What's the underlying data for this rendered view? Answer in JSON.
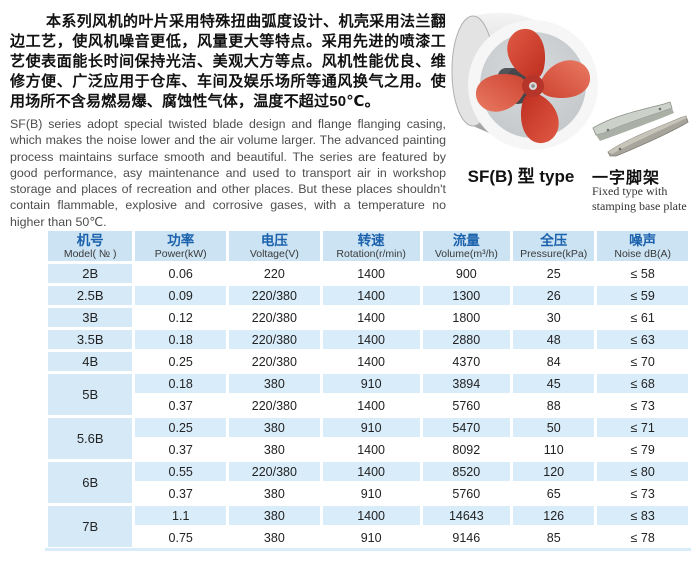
{
  "intro": {
    "cn": "本系列风机的叶片采用特殊扭曲弧度设计、机壳采用法兰翻边工艺，使风机噪音更低，风量更大等特点。采用先进的喷漆工艺使表面能长时间保持光洁、美观大方等点。风机性能优良、维修方便、广泛应用于仓库、车间及娱乐场所等通风换气之用。使用场所不含易燃易爆、腐蚀性气体，温度不超过50℃。",
    "en": "SF(B) series adopt special twisted blade design and flange flanging casing, which makes the noise lower and the air volume larger. The advanced painting process maintains surface smooth and beautiful. The series are featured by good performance, asy maintenance and used to transport air in workshop storage and places of recreation and other places. But these places shouldn't contain flammable, explosive and corrosive gases, with a temperature no higher than 50℃."
  },
  "figures": {
    "fan_caption": "SF(B) 型 type",
    "bracket_caption_cn": "一字脚架",
    "bracket_caption_en": "Fixed type with stamping base plate"
  },
  "colors": {
    "header_bg": "#cbe3f3",
    "stripe_bg": "#d9ecf9",
    "model_col_bg": "#d5e9f7",
    "header_text": "#1b61ac",
    "fan_red": "#c93526",
    "fan_red_light": "#e2604e",
    "casing_silver": "#d9d9d9"
  },
  "table": {
    "headers": [
      {
        "cn": "机号",
        "en": "Model( № )"
      },
      {
        "cn": "功率",
        "en": "Power(kW)"
      },
      {
        "cn": "电压",
        "en": "Voltage(V)"
      },
      {
        "cn": "转速",
        "en": "Rotation(r/min)"
      },
      {
        "cn": "流量",
        "en": "Volume(m³/h)"
      },
      {
        "cn": "全压",
        "en": "Pressure(kPa)"
      },
      {
        "cn": "噪声",
        "en": "Noise dB(A)"
      }
    ],
    "groups": [
      {
        "model": "2B",
        "rows": [
          [
            "0.06",
            "220",
            "1400",
            "900",
            "25",
            "≤ 58"
          ]
        ]
      },
      {
        "model": "2.5B",
        "rows": [
          [
            "0.09",
            "220/380",
            "1400",
            "1300",
            "26",
            "≤ 59"
          ]
        ]
      },
      {
        "model": "3B",
        "rows": [
          [
            "0.12",
            "220/380",
            "1400",
            "1800",
            "30",
            "≤ 61"
          ]
        ]
      },
      {
        "model": "3.5B",
        "rows": [
          [
            "0.18",
            "220/380",
            "1400",
            "2880",
            "48",
            "≤ 63"
          ]
        ]
      },
      {
        "model": "4B",
        "rows": [
          [
            "0.25",
            "220/380",
            "1400",
            "4370",
            "84",
            "≤ 70"
          ]
        ]
      },
      {
        "model": "5B",
        "rows": [
          [
            "0.18",
            "380",
            "910",
            "3894",
            "45",
            "≤ 68"
          ],
          [
            "0.37",
            "220/380",
            "1400",
            "5760",
            "88",
            "≤ 73"
          ]
        ]
      },
      {
        "model": "5.6B",
        "rows": [
          [
            "0.25",
            "380",
            "910",
            "5470",
            "50",
            "≤ 71"
          ],
          [
            "0.37",
            "380",
            "1400",
            "8092",
            "110",
            "≤ 79"
          ]
        ]
      },
      {
        "model": "6B",
        "rows": [
          [
            "0.55",
            "220/380",
            "1400",
            "8520",
            "120",
            "≤ 80"
          ],
          [
            "0.37",
            "380",
            "910",
            "5760",
            "65",
            "≤ 73"
          ]
        ]
      },
      {
        "model": "7B",
        "rows": [
          [
            "1.1",
            "380",
            "1400",
            "14643",
            "126",
            "≤ 83"
          ],
          [
            "0.75",
            "380",
            "910",
            "9146",
            "85",
            "≤ 78"
          ]
        ]
      }
    ]
  }
}
